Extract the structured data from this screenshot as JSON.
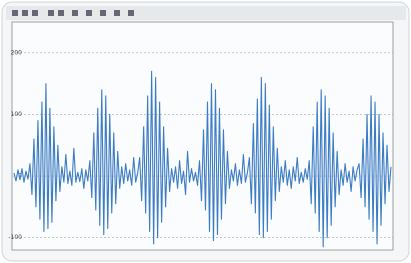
{
  "chart_data": {
    "type": "line",
    "color": "#3b7cc4",
    "grid": true,
    "ylim": [
      -120,
      250
    ],
    "yticks": [
      -100,
      0,
      100,
      200
    ],
    "values": [
      5,
      -8,
      10,
      -6,
      12,
      -10,
      8,
      -5,
      20,
      -30,
      60,
      -50,
      90,
      -70,
      120,
      -90,
      150,
      -85,
      110,
      -75,
      80,
      -40,
      50,
      -25,
      15,
      -10,
      35,
      -12,
      8,
      -15,
      45,
      -10,
      6,
      -9,
      12,
      -20,
      10,
      -8,
      25,
      -35,
      70,
      -55,
      110,
      -80,
      140,
      -95,
      130,
      -85,
      100,
      -60,
      70,
      -45,
      40,
      -20,
      15,
      -12,
      20,
      -8,
      10,
      -15,
      30,
      -10,
      5,
      30,
      -40,
      80,
      -60,
      130,
      -90,
      170,
      -110,
      160,
      -100,
      120,
      -75,
      80,
      -50,
      45,
      -25,
      12,
      -10,
      15,
      -20,
      25,
      -12,
      8,
      -30,
      40,
      -10,
      12,
      -8,
      6,
      -15,
      25,
      -40,
      75,
      -55,
      120,
      -90,
      150,
      -105,
      140,
      -95,
      110,
      -70,
      75,
      -45,
      40,
      -20,
      10,
      -8,
      20,
      -15,
      10,
      -12,
      35,
      -10,
      5,
      30,
      -45,
      85,
      -60,
      125,
      -95,
      160,
      -100,
      150,
      -90,
      115,
      -70,
      80,
      -40,
      45,
      -25,
      15,
      -10,
      25,
      -15,
      10,
      -20,
      15,
      -8,
      30,
      -12,
      6,
      -10,
      12,
      -5,
      25,
      -45,
      80,
      -60,
      120,
      -90,
      140,
      -115,
      130,
      -100,
      110,
      -80,
      70,
      -50,
      40,
      -30,
      10,
      -15,
      20,
      -10,
      8,
      -25,
      15,
      -8,
      10,
      20,
      -35,
      60,
      -50,
      100,
      -70,
      130,
      -90,
      120,
      -110,
      100,
      -80,
      70,
      -45,
      50,
      -25,
      15
    ]
  }
}
